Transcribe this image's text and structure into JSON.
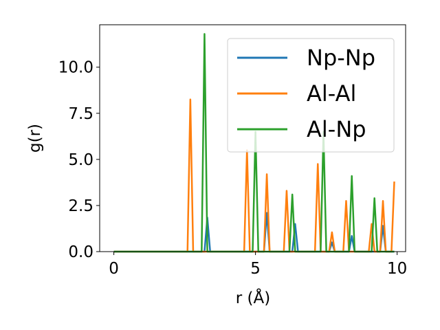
{
  "chart_data": {
    "type": "line",
    "xlabel": "r (Å)",
    "ylabel": "g(r)",
    "xlim": [
      -0.5,
      10.3
    ],
    "ylim": [
      0,
      12.3
    ],
    "xticks": [
      0,
      5,
      10
    ],
    "xtick_labels": [
      "0",
      "5",
      "10"
    ],
    "yticks": [
      0,
      2.5,
      5,
      7.5,
      10
    ],
    "ytick_labels": [
      "0.0",
      "2.5",
      "5.0",
      "7.5",
      "10.0"
    ],
    "grid": false,
    "legend_position": "top-right",
    "series": [
      {
        "name": "Np-Np",
        "color": "#1f77b4",
        "points": [
          [
            0,
            0
          ],
          [
            3.2,
            0
          ],
          [
            3.3,
            1.85
          ],
          [
            3.4,
            0
          ],
          [
            5.3,
            0
          ],
          [
            5.4,
            2.1
          ],
          [
            5.5,
            0
          ],
          [
            6.3,
            0
          ],
          [
            6.4,
            1.5
          ],
          [
            6.5,
            0
          ],
          [
            7.6,
            0
          ],
          [
            7.7,
            0.5
          ],
          [
            7.8,
            0
          ],
          [
            8.3,
            0
          ],
          [
            8.4,
            0.85
          ],
          [
            8.5,
            0
          ],
          [
            9.4,
            0
          ],
          [
            9.5,
            1.4
          ],
          [
            9.6,
            0
          ],
          [
            9.9,
            0
          ]
        ]
      },
      {
        "name": "Al-Al",
        "color": "#ff7f0e",
        "points": [
          [
            0,
            0
          ],
          [
            2.6,
            0
          ],
          [
            2.7,
            8.25
          ],
          [
            2.8,
            0
          ],
          [
            4.6,
            0
          ],
          [
            4.7,
            5.5
          ],
          [
            4.8,
            0
          ],
          [
            5.3,
            0
          ],
          [
            5.4,
            4.2
          ],
          [
            5.5,
            0
          ],
          [
            6.0,
            0
          ],
          [
            6.1,
            3.3
          ],
          [
            6.2,
            0
          ],
          [
            7.1,
            0
          ],
          [
            7.2,
            4.75
          ],
          [
            7.3,
            0
          ],
          [
            7.6,
            0
          ],
          [
            7.7,
            1.05
          ],
          [
            7.8,
            0
          ],
          [
            8.1,
            0
          ],
          [
            8.2,
            2.75
          ],
          [
            8.3,
            0
          ],
          [
            9.0,
            0
          ],
          [
            9.1,
            1.5
          ],
          [
            9.2,
            0
          ],
          [
            9.4,
            0
          ],
          [
            9.5,
            2.75
          ],
          [
            9.6,
            0
          ],
          [
            9.8,
            0
          ],
          [
            9.9,
            3.8
          ]
        ]
      },
      {
        "name": "Al-Np",
        "color": "#2ca02c",
        "points": [
          [
            0,
            0
          ],
          [
            3.1,
            0
          ],
          [
            3.2,
            11.8
          ],
          [
            3.3,
            0
          ],
          [
            4.9,
            0
          ],
          [
            5.0,
            6.5
          ],
          [
            5.1,
            0
          ],
          [
            6.2,
            0
          ],
          [
            6.3,
            3.1
          ],
          [
            6.4,
            0
          ],
          [
            7.3,
            0
          ],
          [
            7.4,
            6.5
          ],
          [
            7.5,
            0
          ],
          [
            8.3,
            0
          ],
          [
            8.4,
            4.1
          ],
          [
            8.5,
            0
          ],
          [
            9.1,
            0
          ],
          [
            9.2,
            2.9
          ],
          [
            9.3,
            0
          ],
          [
            9.9,
            0
          ]
        ]
      }
    ]
  }
}
